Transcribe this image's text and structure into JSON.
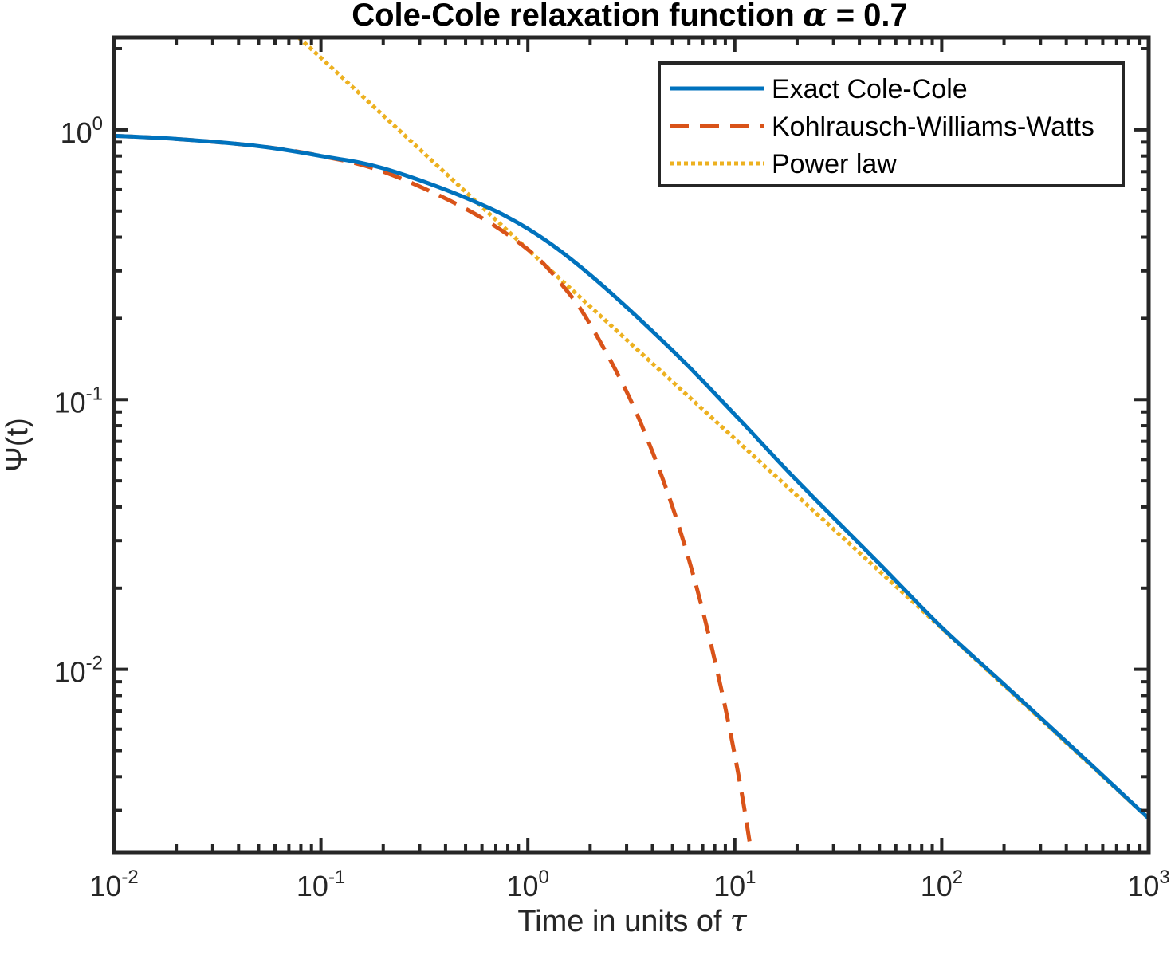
{
  "chart_data": {
    "type": "line",
    "title": "Cole-Cole relaxation function",
    "title_symbol": "α",
    "title_value_text": " = 0.7",
    "alpha": 0.7,
    "xlabel": "Time in units of",
    "xlabel_symbol": "τ",
    "ylabel": "Ψ(t)",
    "x_scale": "log",
    "y_scale": "log",
    "xlim": [
      0.01,
      1000
    ],
    "ylim": [
      0.0021,
      2.2
    ],
    "x_ticks": [
      {
        "value": 0.01,
        "base": "10",
        "exp": "-2"
      },
      {
        "value": 0.1,
        "base": "10",
        "exp": "-1"
      },
      {
        "value": 1,
        "base": "10",
        "exp": "0"
      },
      {
        "value": 10,
        "base": "10",
        "exp": "1"
      },
      {
        "value": 100,
        "base": "10",
        "exp": "2"
      },
      {
        "value": 1000,
        "base": "10",
        "exp": "3"
      }
    ],
    "y_ticks": [
      {
        "value": 1,
        "base": "10",
        "exp": "0"
      },
      {
        "value": 0.1,
        "base": "10",
        "exp": "-1"
      },
      {
        "value": 0.01,
        "base": "10",
        "exp": "-2"
      }
    ],
    "grid": false,
    "legend_position": "top-right",
    "series": [
      {
        "name": "Exact Cole-Cole",
        "color": "#0072BD",
        "style": "solid",
        "x": [
          0.01,
          0.02,
          0.05,
          0.1,
          0.2,
          0.5,
          1,
          2,
          5,
          10,
          20,
          50,
          100,
          200,
          500,
          1000
        ],
        "y": [
          0.95,
          0.925,
          0.87,
          0.8,
          0.72,
          0.56,
          0.43,
          0.29,
          0.152,
          0.088,
          0.05,
          0.0246,
          0.0143,
          0.0088,
          0.0046,
          0.0028
        ]
      },
      {
        "name": "Kohlrausch-Williams-Watts",
        "color": "#D95319",
        "style": "dashed",
        "x": [
          0.01,
          0.02,
          0.05,
          0.1,
          0.2,
          0.5,
          1,
          1.5,
          2,
          3,
          4,
          5,
          6,
          7,
          8,
          9,
          10,
          11,
          12
        ],
        "y": [
          0.95,
          0.925,
          0.87,
          0.8,
          0.7,
          0.51,
          0.36,
          0.26,
          0.19,
          0.107,
          0.064,
          0.04,
          0.0255,
          0.0165,
          0.0108,
          0.0072,
          0.0048,
          0.0032,
          0.0021
        ]
      },
      {
        "name": "Power law",
        "color": "#EDB120",
        "style": "dotted",
        "x": [
          0.078,
          0.1,
          1,
          10,
          100,
          1000
        ],
        "y": [
          2.2,
          1.85,
          0.36,
          0.0716,
          0.0142,
          0.0028
        ]
      }
    ]
  }
}
